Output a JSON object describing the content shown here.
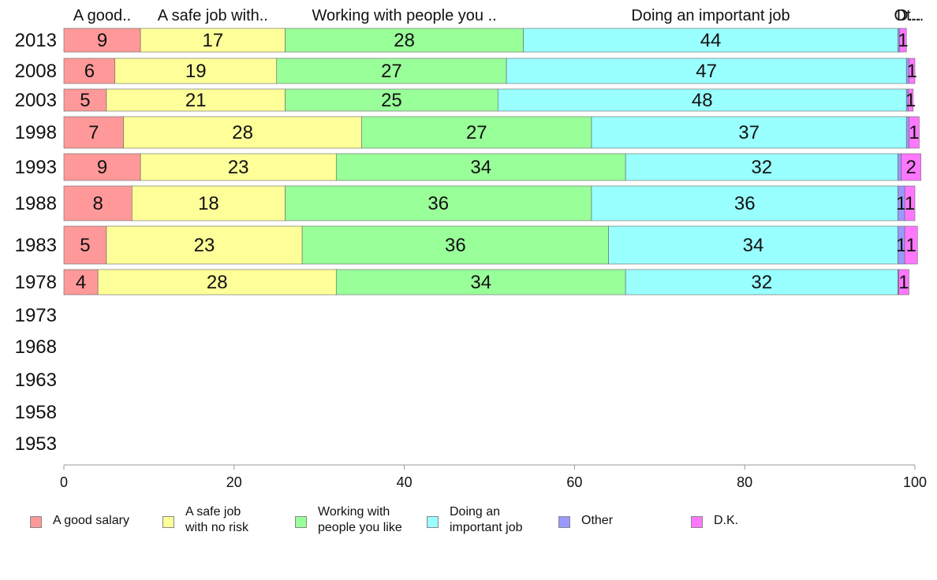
{
  "chart_data": {
    "type": "bar",
    "orientation": "horizontal",
    "stacked": true,
    "categories": [
      "2013",
      "2008",
      "2003",
      "1998",
      "1993",
      "1988",
      "1983",
      "1978",
      "1973",
      "1968",
      "1963",
      "1958",
      "1953"
    ],
    "series": [
      {
        "name": "A good salary",
        "header": "A good..",
        "color": "#ff9999",
        "values": [
          9,
          6,
          5,
          7,
          9,
          8,
          5,
          4,
          null,
          null,
          null,
          null,
          null
        ]
      },
      {
        "name": "A safe job with no risk",
        "header": "A safe job with..",
        "color": "#ffff99",
        "values": [
          17,
          19,
          21,
          28,
          23,
          18,
          23,
          28,
          null,
          null,
          null,
          null,
          null
        ]
      },
      {
        "name": "Working with people you like",
        "header": "Working with people you ..",
        "color": "#99ff99",
        "values": [
          28,
          27,
          25,
          27,
          34,
          36,
          36,
          34,
          null,
          null,
          null,
          null,
          null
        ]
      },
      {
        "name": "Doing an important job",
        "header": "Doing an important job",
        "color": "#99ffff",
        "values": [
          44,
          47,
          48,
          37,
          32,
          36,
          34,
          32,
          null,
          null,
          null,
          null,
          null
        ]
      },
      {
        "name": "Other",
        "header": "Ot...",
        "color": "#9999ff",
        "values": [
          0.2,
          0.3,
          0.2,
          0.3,
          0.4,
          0.8,
          0.8,
          0.1,
          null,
          null,
          null,
          null,
          null
        ]
      },
      {
        "name": "D.K.",
        "header": "D...",
        "color": "#ff77ff",
        "values": [
          0.8,
          0.7,
          0.6,
          1.2,
          2.3,
          1.2,
          1.5,
          1.2,
          null,
          null,
          null,
          null,
          null
        ]
      }
    ],
    "value_labels": [
      [
        "9",
        "17",
        "28",
        "44",
        "",
        "1"
      ],
      [
        "6",
        "19",
        "27",
        "47",
        "",
        "1"
      ],
      [
        "5",
        "21",
        "25",
        "48",
        "",
        "1"
      ],
      [
        "7",
        "28",
        "27",
        "37",
        "",
        "1"
      ],
      [
        "9",
        "23",
        "34",
        "32",
        "",
        "2"
      ],
      [
        "8",
        "18",
        "36",
        "36",
        "1",
        "1"
      ],
      [
        "5",
        "23",
        "36",
        "34",
        "1",
        "1"
      ],
      [
        "4",
        "28",
        "34",
        "32",
        "",
        "1"
      ]
    ],
    "xlim": [
      0,
      100
    ],
    "xticks": [
      "0",
      "20",
      "40",
      "60",
      "80",
      "100"
    ],
    "grid": false,
    "legend_position": "bottom"
  },
  "legend": [
    {
      "label": "A good salary",
      "color": "#ff9999"
    },
    {
      "label": "A safe job\nwith no risk",
      "color": "#ffff99"
    },
    {
      "label": "Working with\npeople you like",
      "color": "#99ff99"
    },
    {
      "label": "Doing an\nimportant job",
      "color": "#99ffff"
    },
    {
      "label": "Other",
      "color": "#9999ff"
    },
    {
      "label": "D.K.",
      "color": "#ff77ff"
    }
  ]
}
